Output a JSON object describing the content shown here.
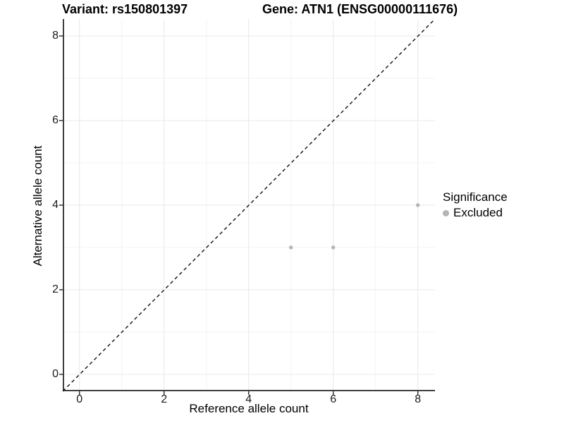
{
  "title": {
    "variant": "Variant: rs150801397",
    "gene": "Gene: ATN1 (ENSG00000111676)"
  },
  "chart_data": {
    "type": "scatter",
    "title_left": "Variant: rs150801397",
    "title_right": "Gene: ATN1 (ENSG00000111676)",
    "xlabel": "Reference allele count",
    "ylabel": "Alternative allele count",
    "xlim": [
      -0.4,
      8.4
    ],
    "ylim": [
      -0.4,
      8.4
    ],
    "x_ticks": [
      0,
      2,
      4,
      6,
      8
    ],
    "y_ticks": [
      0,
      2,
      4,
      6,
      8
    ],
    "x_minor_ticks": [
      1,
      3,
      5,
      7
    ],
    "y_minor_ticks": [
      1,
      3,
      5,
      7
    ],
    "grid": true,
    "aspect": "equal",
    "reference_line": {
      "kind": "identity y=x",
      "style": "dashed",
      "color": "#111111"
    },
    "series": [
      {
        "name": "Excluded",
        "color": "#b4b4b4",
        "points": [
          [
            5,
            3
          ],
          [
            6,
            3
          ],
          [
            8,
            4
          ]
        ]
      }
    ],
    "legend": {
      "title": "Significance",
      "position": "right",
      "entries": [
        {
          "label": "Excluded",
          "color": "#b4b4b4"
        }
      ]
    }
  },
  "colors": {
    "background": "#ffffff",
    "grid_major": "#e8e8e8",
    "grid_minor": "#f3f3f3",
    "axis_line": "#3f3f3f",
    "tick_mark": "#333333",
    "point": "#b4b4b4",
    "diagonal": "#111111",
    "text": "#000000"
  }
}
